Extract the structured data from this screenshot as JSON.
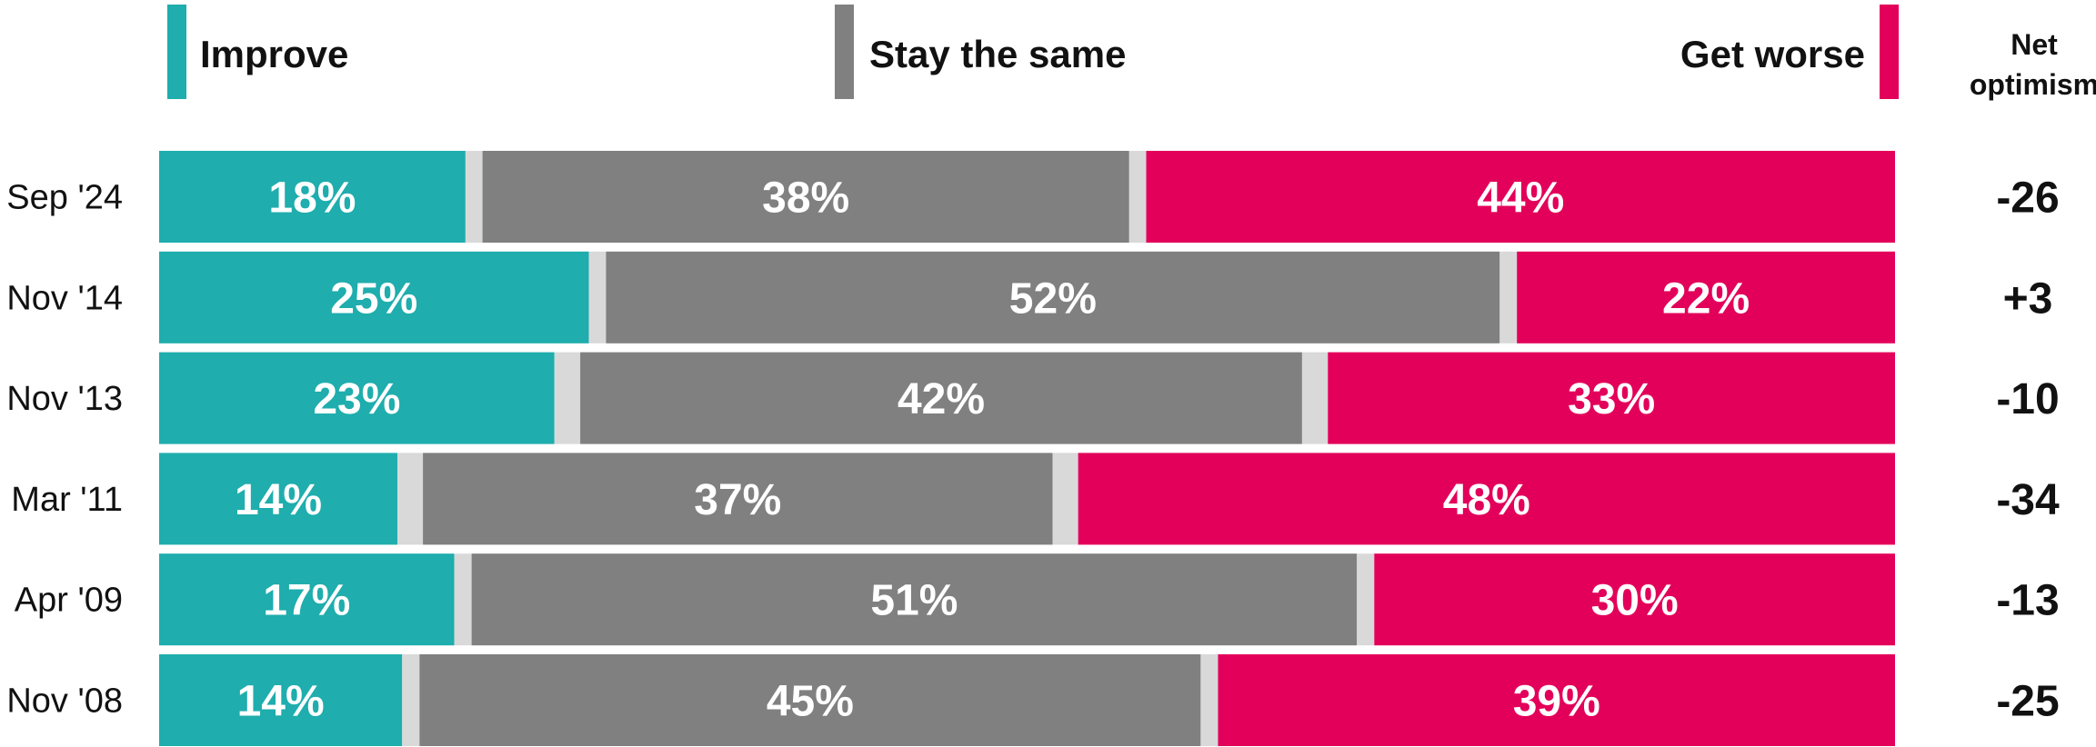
{
  "chart_data": {
    "type": "bar",
    "orientation": "horizontal-stacked-100",
    "legend": {
      "improve": "Improve",
      "same": "Stay the same",
      "worse": "Get worse"
    },
    "net_header": [
      "Net",
      "optimism"
    ],
    "categories": [
      "Sep '24",
      "Nov '14",
      "Nov '13",
      "Mar '11",
      "Apr '09",
      "Nov '08"
    ],
    "series": [
      {
        "key": "improve",
        "name": "Improve",
        "values": [
          18,
          25,
          23,
          14,
          17,
          14
        ],
        "labels": [
          "18%",
          "25%",
          "23%",
          "14%",
          "17%",
          "14%"
        ]
      },
      {
        "key": "same",
        "name": "Stay the same",
        "values": [
          38,
          52,
          42,
          37,
          51,
          45
        ],
        "labels": [
          "38%",
          "52%",
          "42%",
          "37%",
          "51%",
          "45%"
        ]
      },
      {
        "key": "worse",
        "name": "Get worse",
        "values": [
          44,
          22,
          33,
          48,
          30,
          39
        ],
        "labels": [
          "44%",
          "22%",
          "33%",
          "48%",
          "30%",
          "39%"
        ]
      }
    ],
    "gap_values": [
      [
        1,
        1
      ],
      [
        1,
        1
      ],
      [
        1.5,
        1.5
      ],
      [
        1.5,
        1.5
      ],
      [
        1,
        1
      ],
      [
        1,
        1
      ]
    ],
    "net_optimism": [
      "-26",
      "+3",
      "-10",
      "-34",
      "-13",
      "-25"
    ],
    "xlim": [
      0,
      100
    ],
    "colors": {
      "improve": "#1fadad",
      "same": "#808080",
      "worse": "#e3005a",
      "gap": "#d9d9d9"
    }
  }
}
